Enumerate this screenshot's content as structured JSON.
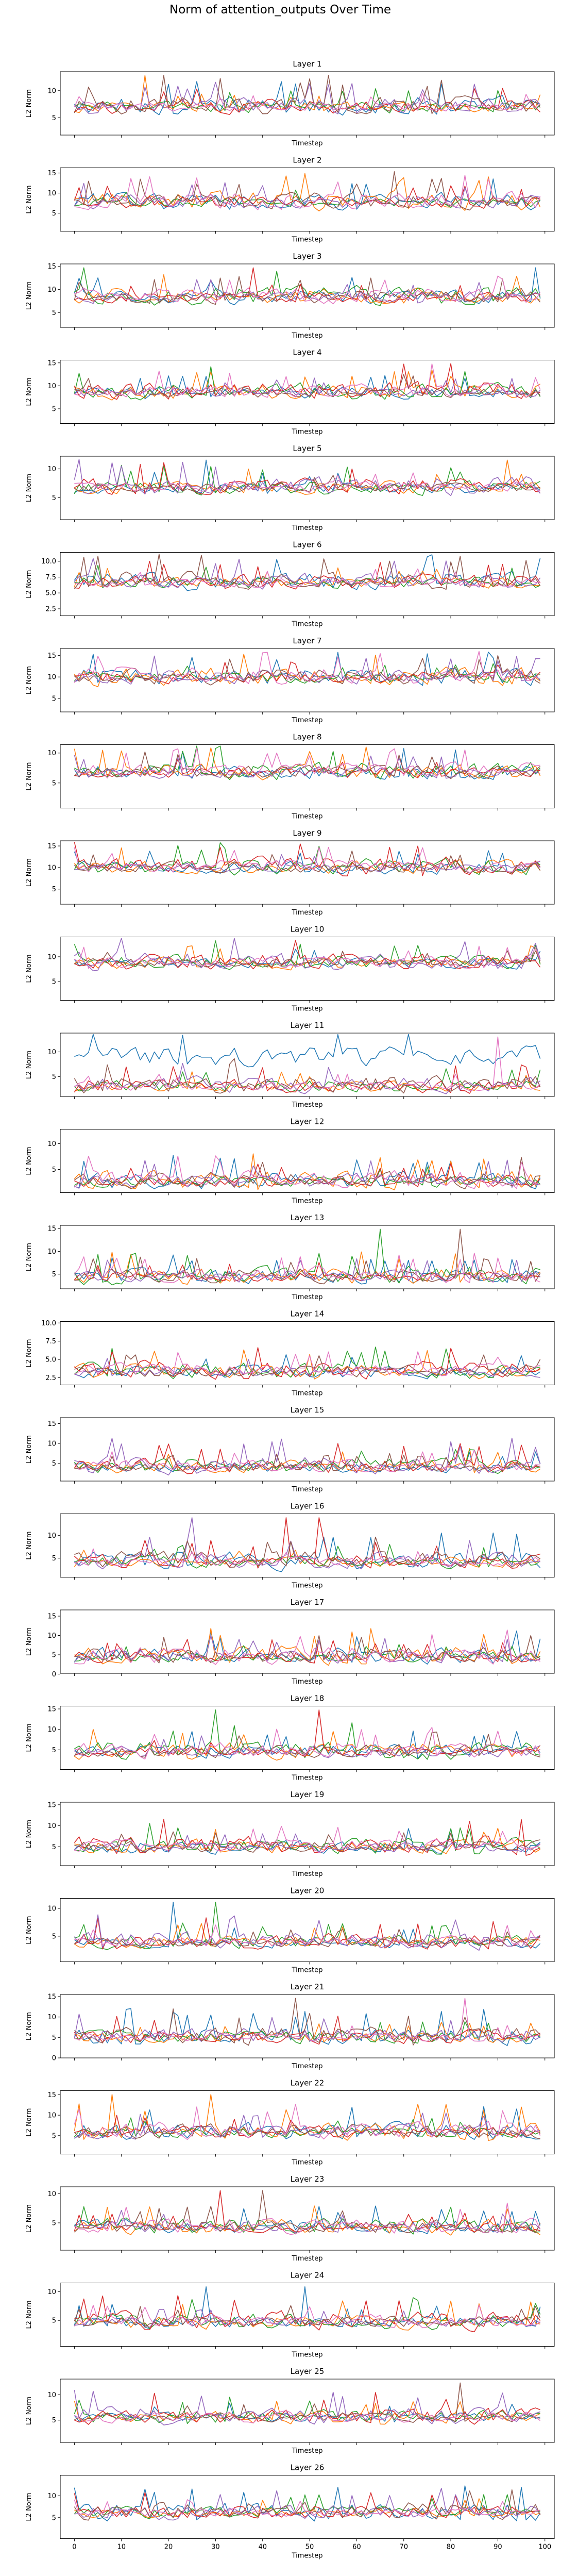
{
  "figure": {
    "suptitle": "Norm of attention_outputs Over Time"
  },
  "chart_data": {
    "type": "line",
    "title": "Norm of attention_outputs Over Time",
    "xlabel": "Timestep",
    "ylabel": "L2 Norm",
    "xlim": [
      -3,
      102
    ],
    "x_ticks": [
      0,
      10,
      20,
      30,
      40,
      50,
      60,
      70,
      80,
      90,
      100
    ],
    "x_tick_labels_shown_on": "last panel only",
    "grid": false,
    "legend": "none",
    "series_count_per_panel": 7,
    "series_colors": [
      "#1f77b4",
      "#ff7f0e",
      "#2ca02c",
      "#d62728",
      "#9467bd",
      "#8c564b",
      "#e377c2"
    ],
    "values_note": "Per-timestep line values are not individually labeled in the image; the page reproduces each panel's printed title, ticks and axis ranges.",
    "panels": [
      {
        "title": "Layer 1",
        "ylim": [
          1.8,
          13.5
        ],
        "yticks": [
          5,
          10
        ],
        "spikes": [
          15,
          19,
          54,
          91
        ]
      },
      {
        "title": "Layer 2",
        "ylim": [
          0.5,
          16.3
        ],
        "yticks": [
          5,
          10,
          15
        ],
        "spikes": [
          8,
          38,
          68,
          77
        ]
      },
      {
        "title": "Layer 3",
        "ylim": [
          1.8,
          15.5
        ],
        "yticks": [
          5,
          10,
          15
        ],
        "spikes": [
          2,
          38,
          98
        ]
      },
      {
        "title": "Layer 4",
        "ylim": [
          1.8,
          15.6
        ],
        "yticks": [
          5,
          10,
          15
        ],
        "spikes": [
          76,
          80,
          93
        ]
      },
      {
        "title": "Layer 5",
        "ylim": [
          1.2,
          12.2
        ],
        "yticks": [
          5,
          10
        ],
        "spikes": [
          28,
          41,
          92
        ]
      },
      {
        "title": "Layer 6",
        "ylim": [
          1.4,
          11.4
        ],
        "yticks": [
          2.5,
          5.0,
          7.5,
          10.0
        ],
        "spikes": [
          5,
          70,
          82
        ]
      },
      {
        "title": "Layer 7",
        "ylim": [
          1.9,
          16.6
        ],
        "yticks": [
          5,
          10,
          15
        ],
        "spikes": [
          29,
          41,
          56
        ]
      },
      {
        "title": "Layer 8",
        "ylim": [
          0.8,
          11.4
        ],
        "yticks": [
          5,
          10
        ],
        "spikes": [
          30,
          70
        ]
      },
      {
        "title": "Layer 9",
        "ylim": [
          1.5,
          16.2
        ],
        "yticks": [
          5,
          10,
          15
        ],
        "spikes": [
          22,
          28,
          35,
          80
        ]
      },
      {
        "title": "Layer 10",
        "ylim": [
          1.2,
          14.0
        ],
        "yticks": [
          5,
          10
        ],
        "spikes": [
          30,
          45
        ]
      },
      {
        "title": "Layer 11",
        "ylim": [
          1.0,
          13.8
        ],
        "yticks": [
          5,
          10
        ],
        "spikes": [
          90,
          99
        ]
      },
      {
        "title": "Layer 12",
        "ylim": [
          0.5,
          12.8
        ],
        "yticks": [
          5,
          10
        ],
        "spikes": [
          18,
          40,
          62
        ]
      },
      {
        "title": "Layer 13",
        "ylim": [
          1.8,
          15.7
        ],
        "yticks": [
          5,
          10,
          15
        ],
        "spikes": [
          65,
          82
        ]
      },
      {
        "title": "Layer 14",
        "ylim": [
          1.5,
          10.2
        ],
        "yticks": [
          2.5,
          5.0,
          7.5,
          10.0
        ],
        "spikes": [
          15,
          24,
          65
        ]
      },
      {
        "title": "Layer 15",
        "ylim": [
          0.5,
          16.5
        ],
        "yticks": [
          5,
          10,
          15
        ],
        "spikes": [
          46,
          60
        ]
      },
      {
        "title": "Layer 16",
        "ylim": [
          0.8,
          14.8
        ],
        "yticks": [
          5,
          10
        ],
        "spikes": [
          25,
          45,
          52
        ]
      },
      {
        "title": "Layer 17",
        "ylim": [
          0.2,
          16.6
        ],
        "yticks": [
          0,
          5,
          10,
          15
        ],
        "spikes": [
          45,
          79,
          97
        ]
      },
      {
        "title": "Layer 18",
        "ylim": [
          0.2,
          15.7
        ],
        "yticks": [
          5,
          10,
          15
        ],
        "spikes": [
          30,
          52
        ]
      },
      {
        "title": "Layer 19",
        "ylim": [
          0.5,
          15.6
        ],
        "yticks": [
          5,
          10,
          15
        ],
        "spikes": [
          23,
          29
        ]
      },
      {
        "title": "Layer 20",
        "ylim": [
          0.4,
          11.8
        ],
        "yticks": [
          5,
          10
        ],
        "spikes": [
          21,
          30
        ]
      },
      {
        "title": "Layer 21",
        "ylim": [
          0.0,
          15.5
        ],
        "yticks": [
          0,
          5,
          10,
          15
        ],
        "spikes": [
          36,
          47,
          83
        ]
      },
      {
        "title": "Layer 22",
        "ylim": [
          0.5,
          16.0
        ],
        "yticks": [
          5,
          10,
          15
        ],
        "spikes": [
          8,
          29,
          55
        ]
      },
      {
        "title": "Layer 23",
        "ylim": [
          0.3,
          11.2
        ],
        "yticks": [
          5,
          10
        ],
        "spikes": [
          31,
          40,
          98
        ]
      },
      {
        "title": "Layer 24",
        "ylim": [
          0.5,
          11.5
        ],
        "yticks": [
          5,
          10
        ],
        "spikes": [
          28,
          49,
          80
        ]
      },
      {
        "title": "Layer 25",
        "ylim": [
          0.6,
          13.1
        ],
        "yticks": [
          5,
          10
        ],
        "spikes": [
          48,
          82
        ]
      },
      {
        "title": "Layer 26",
        "ylim": [
          0.2,
          14.7
        ],
        "yticks": [
          5,
          10
        ],
        "spikes": [
          59,
          88
        ]
      }
    ]
  }
}
